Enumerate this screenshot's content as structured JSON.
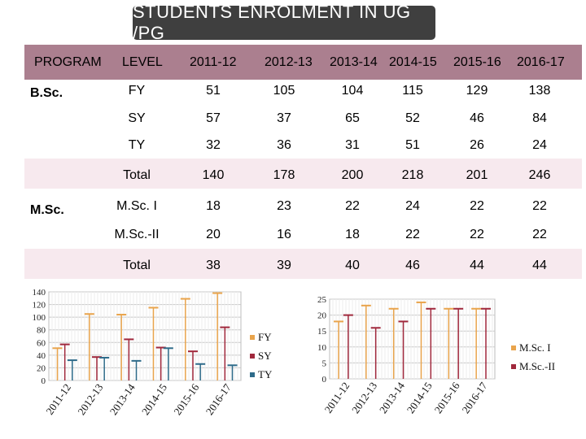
{
  "title": "STUDENTS ENROLMENT IN UG /PG",
  "table": {
    "headers": [
      "PROGRAM",
      "LEVEL",
      "2011-12",
      "2012-13",
      "2013-14",
      "2014-15",
      "2015-16",
      "2016-17"
    ],
    "programs": [
      {
        "name": "B.Sc.",
        "rows": [
          {
            "level": "FY",
            "values": [
              "51",
              "105",
              "104",
              "115",
              "129",
              "138"
            ]
          },
          {
            "level": "SY",
            "values": [
              "57",
              "37",
              "65",
              "52",
              "46",
              "84"
            ]
          },
          {
            "level": "TY",
            "values": [
              "32",
              "36",
              "31",
              "51",
              "26",
              "24"
            ]
          },
          {
            "level": "Total",
            "values": [
              "140",
              "178",
              "200",
              "218",
              "201",
              "246"
            ]
          }
        ]
      },
      {
        "name": "M.Sc.",
        "rows": [
          {
            "level": "M.Sc. I",
            "values": [
              "18",
              "23",
              "22",
              "24",
              "22",
              "22"
            ]
          },
          {
            "level": "M.Sc.-II",
            "values": [
              "20",
              "16",
              "18",
              "22",
              "22",
              "22"
            ]
          },
          {
            "level": "Total",
            "values": [
              "38",
              "39",
              "40",
              "46",
              "44",
              "44"
            ]
          }
        ]
      }
    ]
  },
  "chart_data": [
    {
      "type": "bar",
      "categories": [
        "2011-12",
        "2012-13",
        "2013-14",
        "2014-15",
        "2015-16",
        "2016-17"
      ],
      "series": [
        {
          "name": "FY",
          "values": [
            51,
            105,
            104,
            115,
            129,
            138
          ],
          "color": "#e9a44c"
        },
        {
          "name": "SY",
          "values": [
            57,
            37,
            65,
            52,
            46,
            84
          ],
          "color": "#a0283c"
        },
        {
          "name": "TY",
          "values": [
            32,
            36,
            31,
            51,
            26,
            24
          ],
          "color": "#2e6b8a"
        }
      ],
      "ylim": [
        0,
        140
      ],
      "yticks": [
        0,
        20,
        40,
        60,
        80,
        100,
        120,
        140
      ],
      "legend": "right"
    },
    {
      "type": "bar",
      "categories": [
        "2011-12",
        "2012-13",
        "2013-14",
        "2014-15",
        "2015-16",
        "2016-17"
      ],
      "series": [
        {
          "name": "M.Sc. I",
          "values": [
            18,
            23,
            22,
            24,
            22,
            22
          ],
          "color": "#e9a44c"
        },
        {
          "name": "M.Sc.-II",
          "values": [
            20,
            16,
            18,
            22,
            22,
            22
          ],
          "color": "#a0283c"
        }
      ],
      "ylim": [
        0,
        25
      ],
      "yticks": [
        0,
        5,
        10,
        15,
        20,
        25
      ],
      "legend": "right"
    }
  ]
}
